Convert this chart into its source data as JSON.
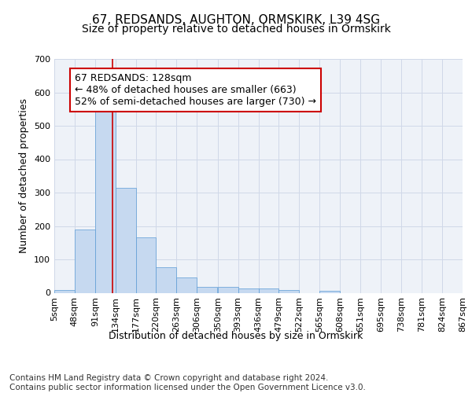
{
  "title": "67, REDSANDS, AUGHTON, ORMSKIRK, L39 4SG",
  "subtitle": "Size of property relative to detached houses in Ormskirk",
  "xlabel": "Distribution of detached houses by size in Ormskirk",
  "ylabel": "Number of detached properties",
  "bar_values": [
    8,
    190,
    548,
    315,
    165,
    77,
    47,
    18,
    18,
    12,
    12,
    8,
    0,
    5,
    0,
    0,
    0,
    0,
    0,
    0
  ],
  "bin_edges": [
    5,
    48,
    91,
    134,
    177,
    220,
    263,
    306,
    350,
    393,
    436,
    479,
    522,
    565,
    608,
    651,
    695,
    738,
    781,
    824,
    867
  ],
  "tick_labels": [
    "5sqm",
    "48sqm",
    "91sqm",
    "134sqm",
    "177sqm",
    "220sqm",
    "263sqm",
    "306sqm",
    "350sqm",
    "393sqm",
    "436sqm",
    "479sqm",
    "522sqm",
    "565sqm",
    "608sqm",
    "651sqm",
    "695sqm",
    "738sqm",
    "781sqm",
    "824sqm",
    "867sqm"
  ],
  "bar_color": "#c6d9f0",
  "bar_edge_color": "#5b9bd5",
  "grid_color": "#d0d8e8",
  "background_color": "#eef2f8",
  "vline_x": 128,
  "vline_color": "#cc0000",
  "annotation_text": "67 REDSANDS: 128sqm\n← 48% of detached houses are smaller (663)\n52% of semi-detached houses are larger (730) →",
  "annotation_box_color": "#ffffff",
  "annotation_box_edge_color": "#cc0000",
  "ylim": [
    0,
    700
  ],
  "yticks": [
    0,
    100,
    200,
    300,
    400,
    500,
    600,
    700
  ],
  "footer_text": "Contains HM Land Registry data © Crown copyright and database right 2024.\nContains public sector information licensed under the Open Government Licence v3.0.",
  "title_fontsize": 11,
  "subtitle_fontsize": 10,
  "ylabel_fontsize": 9,
  "xlabel_fontsize": 9,
  "tick_fontsize": 8,
  "annotation_fontsize": 9,
  "footer_fontsize": 7.5
}
